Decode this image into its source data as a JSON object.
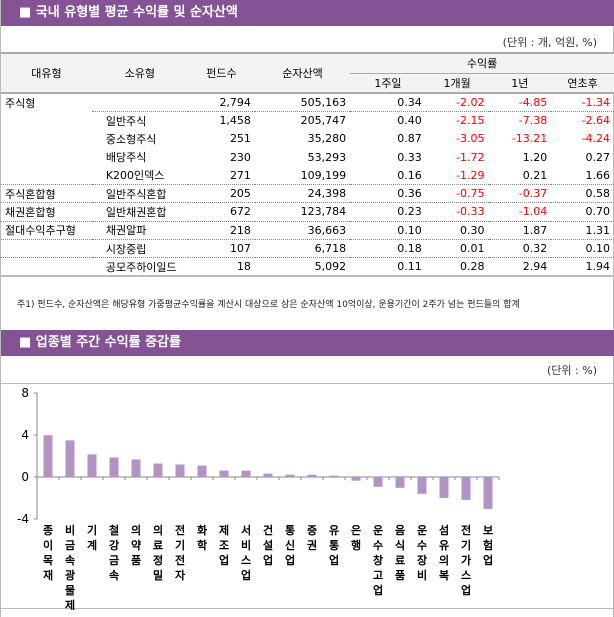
{
  "section1": {
    "title": "■ 국내 유형별 평균 수익률 및 순자산액",
    "unit": "(단위 : 개, 억원, %)",
    "headers": {
      "major": "대유형",
      "minor": "소유형",
      "funds": "펀드수",
      "assets": "순자산액",
      "returns": "수익률",
      "w1": "1주일",
      "m1": "1개월",
      "y1": "1년",
      "ytd": "연초후"
    },
    "rows": [
      [
        "주식형",
        "",
        "2,794",
        "505,163",
        "0.34",
        "-2.02",
        "-4.85",
        "-1.34"
      ],
      [
        "",
        "일반주식",
        "1,458",
        "205,747",
        "0.40",
        "-2.15",
        "-7.38",
        "-2.64"
      ],
      [
        "",
        "중소형주식",
        "251",
        "35,280",
        "0.87",
        "-3.05",
        "-13.21",
        "-4.24"
      ],
      [
        "",
        "배당주식",
        "230",
        "53,293",
        "0.33",
        "-1.72",
        "1.20",
        "0.27"
      ],
      [
        "",
        "K200인덱스",
        "271",
        "109,199",
        "0.16",
        "-1.29",
        "0.21",
        "1.66"
      ],
      [
        "주식혼합형",
        "일반주식혼합",
        "205",
        "24,398",
        "0.36",
        "-0.75",
        "-0.37",
        "0.58"
      ],
      [
        "채권혼합형",
        "일반채권혼합",
        "672",
        "123,784",
        "0.23",
        "-0.33",
        "-1.04",
        "0.70"
      ],
      [
        "절대수익추구형",
        "채권알파",
        "218",
        "36,663",
        "0.10",
        "0.30",
        "1.87",
        "1.31"
      ],
      [
        "",
        "시장중립",
        "107",
        "6,718",
        "0.18",
        "0.01",
        "0.32",
        "0.10"
      ],
      [
        "",
        "공모주하이일드",
        "18",
        "5,092",
        "0.11",
        "0.28",
        "2.94",
        "1.94"
      ]
    ],
    "note": "주1) 펀드수, 순자산액은 해당유형 가중평균수익률을 계산시 대상으로 삼은 순자산액 10억이상, 운용기간이 2주가 넘는 펀드들의 합계"
  },
  "section2": {
    "title": "■ 업종별 주간 수익률 증감률",
    "unit": "(단위 : %)"
  },
  "colors": {
    "header": "#835396",
    "bar": "#b393c3",
    "negative": "#ff0000"
  },
  "chart_data": {
    "type": "bar",
    "ylim": [
      -4,
      8
    ],
    "yticks": [
      "8",
      "4",
      "0",
      "-4"
    ],
    "categories": [
      "종이목재",
      "비금속광물제품",
      "기계",
      "철강금속",
      "의약품",
      "의료정밀",
      "전기전자",
      "화학",
      "제조업",
      "서비스업",
      "건설업",
      "통신업",
      "증권",
      "유통업",
      "은행",
      "운수창고업",
      "음식료품",
      "운수장비",
      "섬유의복",
      "전기가스업",
      "보험업"
    ],
    "values": [
      3.97,
      3.49,
      2.15,
      1.86,
      1.67,
      1.28,
      1.19,
      1.09,
      0.61,
      0.61,
      0.32,
      0.22,
      0.22,
      0.13,
      -0.35,
      -0.93,
      -1.03,
      -1.6,
      -1.99,
      -2.18,
      -3.04
    ]
  }
}
